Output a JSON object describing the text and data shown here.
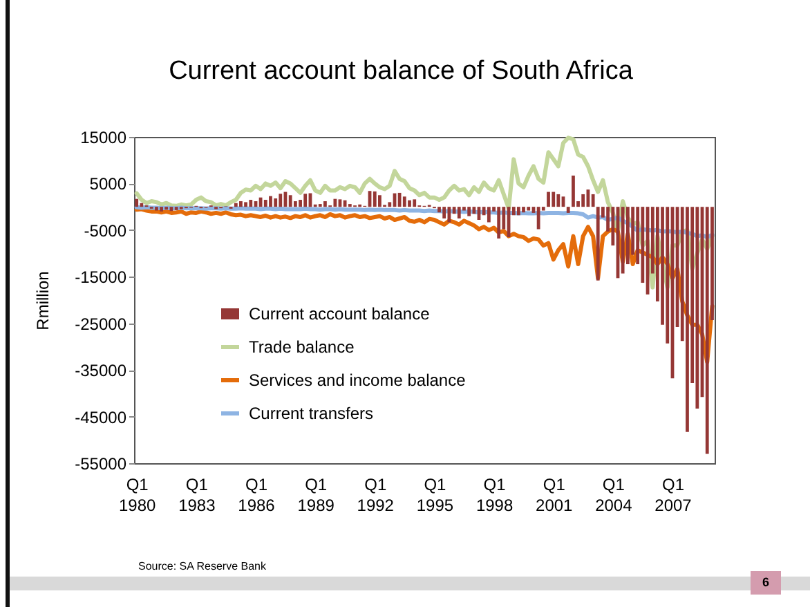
{
  "chart_data": {
    "type": "bar",
    "title": "Current account balance of South Africa",
    "ylabel": "Rmillion",
    "annotations": [
      "Source: SA Reserve Bank",
      "6"
    ],
    "x": [
      "1980-01",
      "1980-04",
      "1980-07",
      "1980-10",
      "1981-01",
      "1981-04",
      "1981-07",
      "1981-10",
      "1982-01",
      "1982-04",
      "1982-07",
      "1982-10",
      "1983-01",
      "1983-04",
      "1983-07",
      "1983-10",
      "1984-01",
      "1984-04",
      "1984-07",
      "1984-10",
      "1985-01",
      "1985-04",
      "1985-07",
      "1985-10",
      "1986-01",
      "1986-04",
      "1986-07",
      "1986-10",
      "1987-01",
      "1987-04",
      "1987-07",
      "1987-10",
      "1988-01",
      "1988-04",
      "1988-07",
      "1988-10",
      "1989-01",
      "1989-04",
      "1989-07",
      "1989-10",
      "1990-01",
      "1990-04",
      "1990-07",
      "1990-10",
      "1991-01",
      "1991-04",
      "1991-07",
      "1991-10",
      "1992-01",
      "1992-04",
      "1992-07",
      "1992-10",
      "1993-01",
      "1993-04",
      "1993-07",
      "1993-10",
      "1994-01",
      "1994-04",
      "1994-07",
      "1994-10",
      "1995-01",
      "1995-04",
      "1995-07",
      "1995-10",
      "1996-01",
      "1996-04",
      "1996-07",
      "1996-10",
      "1997-01",
      "1997-04",
      "1997-07",
      "1997-10",
      "1998-01",
      "1998-04",
      "1998-07",
      "1998-10",
      "1999-01",
      "1999-04",
      "1999-07",
      "1999-10",
      "2000-01",
      "2000-04",
      "2000-07",
      "2000-10",
      "2001-01",
      "2001-04",
      "2001-07",
      "2001-10",
      "2002-01",
      "2002-04",
      "2002-07",
      "2002-10",
      "2003-01",
      "2003-04",
      "2003-07",
      "2003-10",
      "2004-01",
      "2004-04",
      "2004-07",
      "2004-10",
      "2005-01",
      "2005-04",
      "2005-07",
      "2005-10",
      "2006-01",
      "2006-04",
      "2006-07",
      "2006-10",
      "2007-01",
      "2007-04",
      "2007-07",
      "2007-10",
      "2008-01",
      "2008-04",
      "2008-07",
      "2008-10",
      "2009-01"
    ],
    "series": [
      {
        "name": "Current account balance",
        "color": "#953735",
        "values": [
          1700,
          800,
          300,
          -400,
          -800,
          -1000,
          -600,
          -900,
          -700,
          -500,
          -300,
          -200,
          200,
          -300,
          -200,
          300,
          -500,
          -300,
          100,
          -400,
          800,
          1200,
          1000,
          1500,
          1200,
          2000,
          1500,
          2300,
          1800,
          2800,
          3200,
          2500,
          1200,
          1500,
          2800,
          2900,
          500,
          600,
          1200,
          300,
          1700,
          1600,
          1400,
          600,
          300,
          500,
          200,
          3400,
          3300,
          2500,
          400,
          1000,
          2900,
          3000,
          2200,
          1400,
          1600,
          300,
          200,
          400,
          -300,
          -1200,
          -2500,
          -3300,
          -1500,
          -2500,
          -800,
          -2000,
          -1500,
          -2800,
          -1800,
          -3300,
          -1000,
          -6800,
          -4800,
          -6500,
          -1800,
          -1800,
          -1200,
          -800,
          -1300,
          -4800,
          -800,
          3200,
          3200,
          2700,
          2200,
          -1300,
          6700,
          1200,
          2700,
          3700,
          2700,
          -15800,
          -2300,
          -5300,
          -8300,
          -15300,
          -14300,
          -12300,
          -10300,
          -12300,
          -16300,
          -18800,
          -14300,
          -20300,
          -25300,
          -29300,
          -36800,
          -25800,
          -28800,
          -48300,
          -37800,
          -43300,
          -40800,
          -53000,
          -24300
        ]
      },
      {
        "name": "Trade balance",
        "type": "line",
        "color": "#c3d69b",
        "values": [
          2900,
          1500,
          800,
          1200,
          1000,
          500,
          800,
          300,
          200,
          500,
          300,
          500,
          1500,
          2000,
          1200,
          1000,
          300,
          600,
          300,
          1000,
          1500,
          3000,
          3700,
          3500,
          4500,
          3800,
          5000,
          4500,
          5200,
          4000,
          5500,
          5000,
          4000,
          3000,
          4500,
          5700,
          3500,
          3000,
          4500,
          3500,
          3500,
          4200,
          3800,
          4500,
          4200,
          3000,
          5000,
          6000,
          5000,
          4200,
          3800,
          4500,
          7700,
          6000,
          5500,
          4000,
          3500,
          2500,
          3000,
          2000,
          2000,
          1500,
          2000,
          3500,
          4500,
          3500,
          3800,
          2500,
          4200,
          3200,
          5200,
          4000,
          3500,
          5700,
          2700,
          -300,
          10200,
          5000,
          4200,
          6700,
          8700,
          6000,
          5200,
          11700,
          10200,
          8700,
          13700,
          14800,
          14500,
          11200,
          10700,
          8700,
          5700,
          3200,
          5700,
          1000,
          -1300,
          -5300,
          1200,
          -2300,
          -3800,
          -3300,
          -8300,
          -7300,
          -17300,
          -6300,
          -12000,
          -17300,
          -8300,
          -8300,
          -5300,
          -5000,
          -13300,
          -10000,
          -7000,
          -9000,
          -6300
        ]
      },
      {
        "name": "Services and income balance",
        "type": "line",
        "color": "#e46c0a",
        "values": [
          -600,
          -500,
          -800,
          -1000,
          -1000,
          -1200,
          -1000,
          -1300,
          -1200,
          -1000,
          -1500,
          -1200,
          -1300,
          -1000,
          -1200,
          -1500,
          -1300,
          -1500,
          -1200,
          -1600,
          -1800,
          -1700,
          -2000,
          -1800,
          -2000,
          -2200,
          -1900,
          -2300,
          -2000,
          -2300,
          -2100,
          -2400,
          -2000,
          -2200,
          -1800,
          -2300,
          -2000,
          -1800,
          -2200,
          -1600,
          -2000,
          -1800,
          -2300,
          -2000,
          -1800,
          -2200,
          -2000,
          -2400,
          -2200,
          -2000,
          -2500,
          -2200,
          -2800,
          -2500,
          -2200,
          -3000,
          -3200,
          -2800,
          -3300,
          -2600,
          -2800,
          -3300,
          -3800,
          -3000,
          -3300,
          -3800,
          -3000,
          -3500,
          -4000,
          -4800,
          -4300,
          -5000,
          -4500,
          -5500,
          -5200,
          -6300,
          -5800,
          -6300,
          -6500,
          -7300,
          -6800,
          -7000,
          -8300,
          -7800,
          -11300,
          -9300,
          -8000,
          -12800,
          -6300,
          -12300,
          -6300,
          -4300,
          -6300,
          -15300,
          -6300,
          -5300,
          -4800,
          -5300,
          -11800,
          -5800,
          -12300,
          -9300,
          -9800,
          -10300,
          -10800,
          -12300,
          -10800,
          -12300,
          -15300,
          -13300,
          -20300,
          -23300,
          -25300,
          -25300,
          -27300,
          -33300,
          -21300
        ]
      },
      {
        "name": "Current transfers",
        "type": "line",
        "color": "#8eb4e3",
        "values": [
          -100,
          -200,
          -100,
          -200,
          -200,
          -300,
          -200,
          -300,
          -300,
          -200,
          -300,
          -300,
          -300,
          -300,
          -400,
          -300,
          -300,
          -400,
          -300,
          -400,
          -400,
          -300,
          -400,
          -400,
          -400,
          -500,
          -400,
          -400,
          -500,
          -400,
          -500,
          -500,
          -500,
          -500,
          -400,
          -500,
          -500,
          -600,
          -500,
          -500,
          -600,
          -500,
          -600,
          -600,
          -600,
          -600,
          -700,
          -600,
          -700,
          -600,
          -700,
          -700,
          -700,
          -800,
          -700,
          -800,
          -800,
          -800,
          -900,
          -800,
          -900,
          -900,
          -1000,
          -900,
          -1000,
          -1000,
          -1100,
          -1000,
          -1100,
          -1200,
          -1100,
          -1200,
          -1200,
          -1300,
          -1200,
          -1300,
          -1300,
          -1400,
          -1300,
          -1400,
          -1400,
          -1300,
          -1400,
          -1300,
          -1300,
          -1300,
          -1400,
          -1300,
          -1300,
          -1400,
          -1600,
          -2300,
          -2000,
          -2300,
          -2200,
          -2800,
          -2600,
          -2300,
          -3000,
          -3500,
          -4300,
          -5100,
          -4800,
          -5000,
          -5100,
          -5000,
          -5300,
          -5200,
          -5300,
          -5500,
          -5300,
          -5600,
          -5800,
          -6300,
          -6100,
          -6500,
          -6000
        ]
      }
    ],
    "xlim": [
      "1979-11-15",
      "2009-02-15"
    ],
    "xticks": [
      {
        "value": "1980-01",
        "label": "Q1 1980"
      },
      {
        "value": "1983-01",
        "label": "Q1 1983"
      },
      {
        "value": "1986-01",
        "label": "Q1 1986"
      },
      {
        "value": "1989-01",
        "label": "Q1 1989"
      },
      {
        "value": "1992-01",
        "label": "Q1 1992"
      },
      {
        "value": "1995-01",
        "label": "Q1 1995"
      },
      {
        "value": "1998-01",
        "label": "Q1 1998"
      },
      {
        "value": "2001-01",
        "label": "Q1 2001"
      },
      {
        "value": "2004-01",
        "label": "Q1 2004"
      },
      {
        "value": "2007-01",
        "label": "Q1 2007"
      }
    ],
    "ylim": [
      -55000,
      15000
    ],
    "yticks": [
      15000,
      5000,
      -5000,
      -15000,
      -25000,
      -35000,
      -45000,
      -55000
    ],
    "legend": "bottom left",
    "line_style": "solid"
  }
}
